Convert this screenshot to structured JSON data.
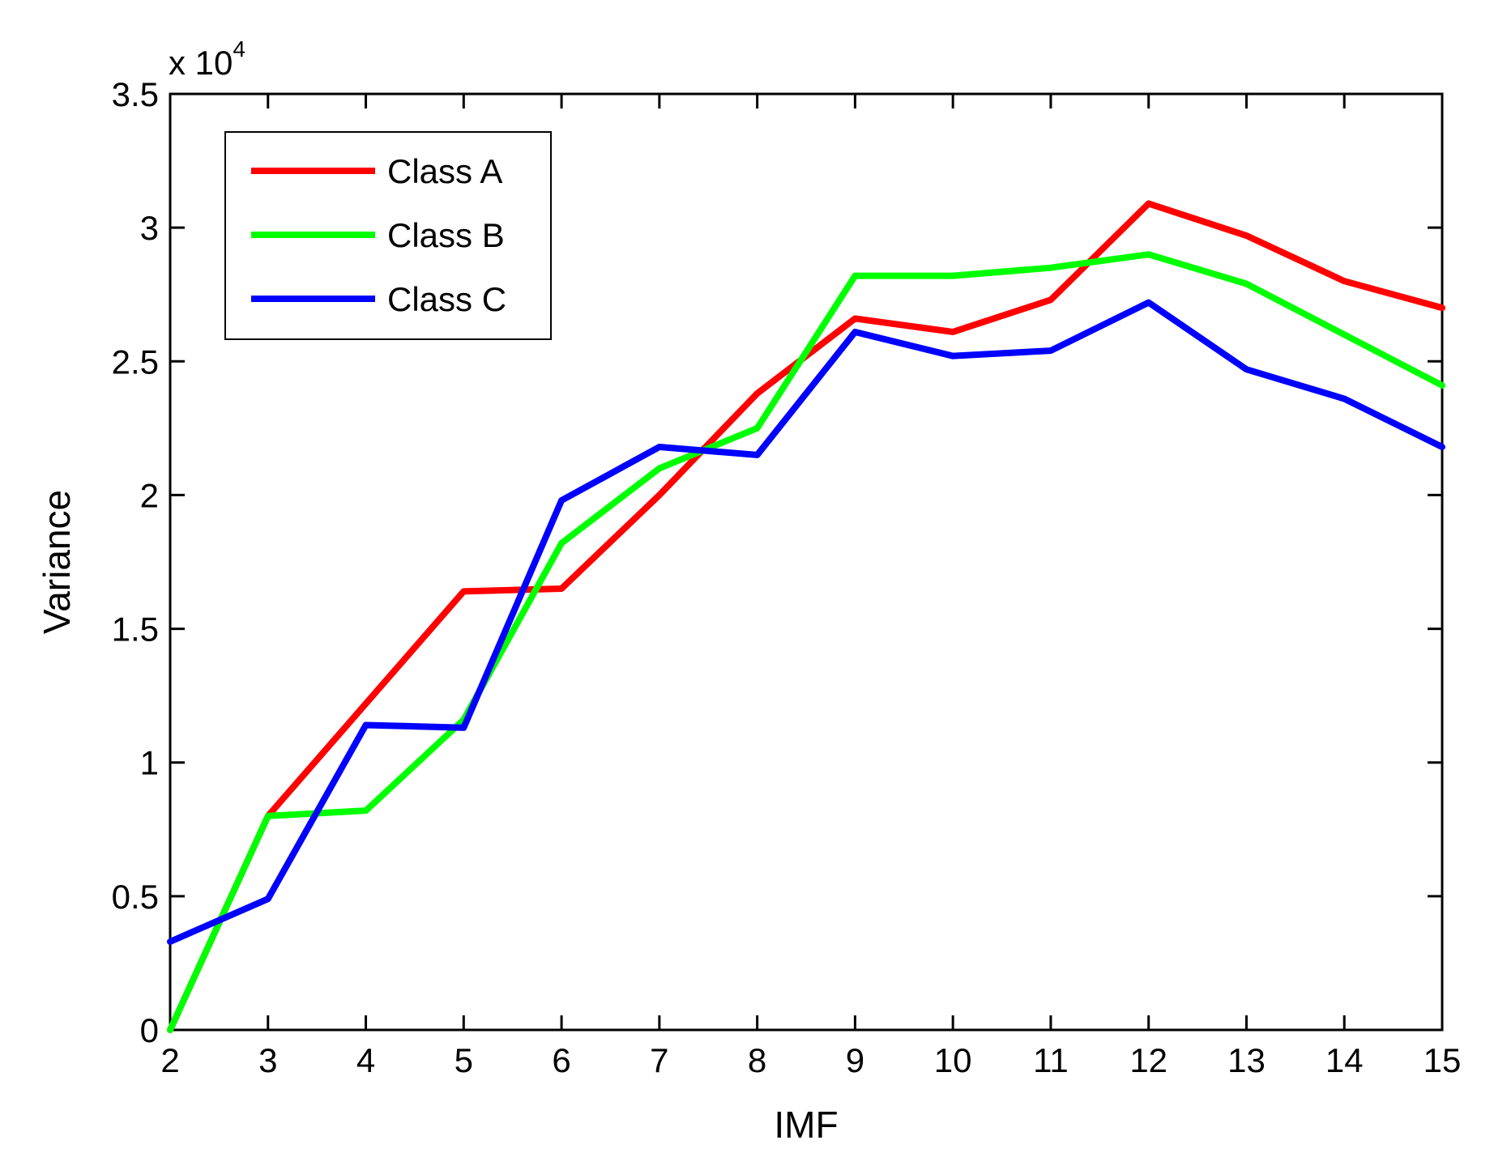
{
  "chart_data": {
    "type": "line",
    "xlabel": "IMF",
    "ylabel": "Variance",
    "exponent_multiplier": "x 10",
    "exponent_power": "4",
    "x": [
      2,
      3,
      4,
      5,
      6,
      7,
      8,
      9,
      10,
      11,
      12,
      13,
      14,
      15
    ],
    "xlim": [
      2,
      15
    ],
    "ylim": [
      0,
      35000
    ],
    "y_scale_factor": 10000,
    "x_ticks": [
      "2",
      "3",
      "4",
      "5",
      "6",
      "7",
      "8",
      "9",
      "10",
      "11",
      "12",
      "13",
      "14",
      "15"
    ],
    "y_ticks": [
      0,
      0.5,
      1,
      1.5,
      2,
      2.5,
      3,
      3.5
    ],
    "y_tick_labels": [
      "0",
      "0.5",
      "1",
      "1.5",
      "2",
      "2.5",
      "3",
      "3.5"
    ],
    "grid": false,
    "legend_position": "top-left",
    "series": [
      {
        "name": "Class A",
        "color": "#ff0000",
        "values": [
          0,
          8000,
          12200,
          16400,
          16500,
          20000,
          23800,
          26600,
          26100,
          27300,
          30900,
          29700,
          28000,
          27000
        ]
      },
      {
        "name": "Class B",
        "color": "#00ff00",
        "values": [
          0,
          8000,
          8200,
          11600,
          18200,
          21000,
          22500,
          28200,
          28200,
          28500,
          29000,
          27900,
          26000,
          24100
        ]
      },
      {
        "name": "Class C",
        "color": "#0000ff",
        "values": [
          3300,
          4900,
          11400,
          11300,
          19800,
          21800,
          21500,
          26100,
          25200,
          25400,
          27200,
          24700,
          23600,
          21800
        ]
      }
    ]
  }
}
